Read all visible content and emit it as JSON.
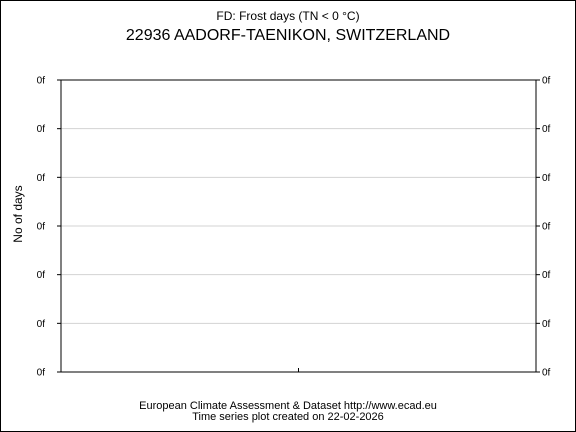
{
  "header": {
    "subtitle": "FD: Frost days (TN < 0 °C)",
    "title": "22936 AADORF-TAENIKON, SWITZERLAND"
  },
  "footer": {
    "line1": "European Climate Assessment & Dataset  http://www.ecad.eu",
    "line2": "Time series plot created on 22-02-2026"
  },
  "chart_data": {
    "type": "line",
    "title": "22936 AADORF-TAENIKON, SWITZERLAND",
    "subtitle": "FD: Frost days (TN < 0 °C)",
    "xlabel": "",
    "ylabel": "No of days",
    "series": [],
    "y_tick_labels": [
      "0f",
      "0f",
      "0f",
      "0f",
      "0f",
      "0f",
      "0f"
    ],
    "y_tick_labels_right": [
      "0f",
      "0f",
      "0f",
      "0f",
      "0f",
      "0f",
      "0f"
    ],
    "x_tick_labels": [],
    "grid": "horizontal",
    "legend": "none",
    "colors": {
      "frame": "#000000",
      "grid": "#d3d3d3",
      "background": "#ffffff"
    }
  }
}
